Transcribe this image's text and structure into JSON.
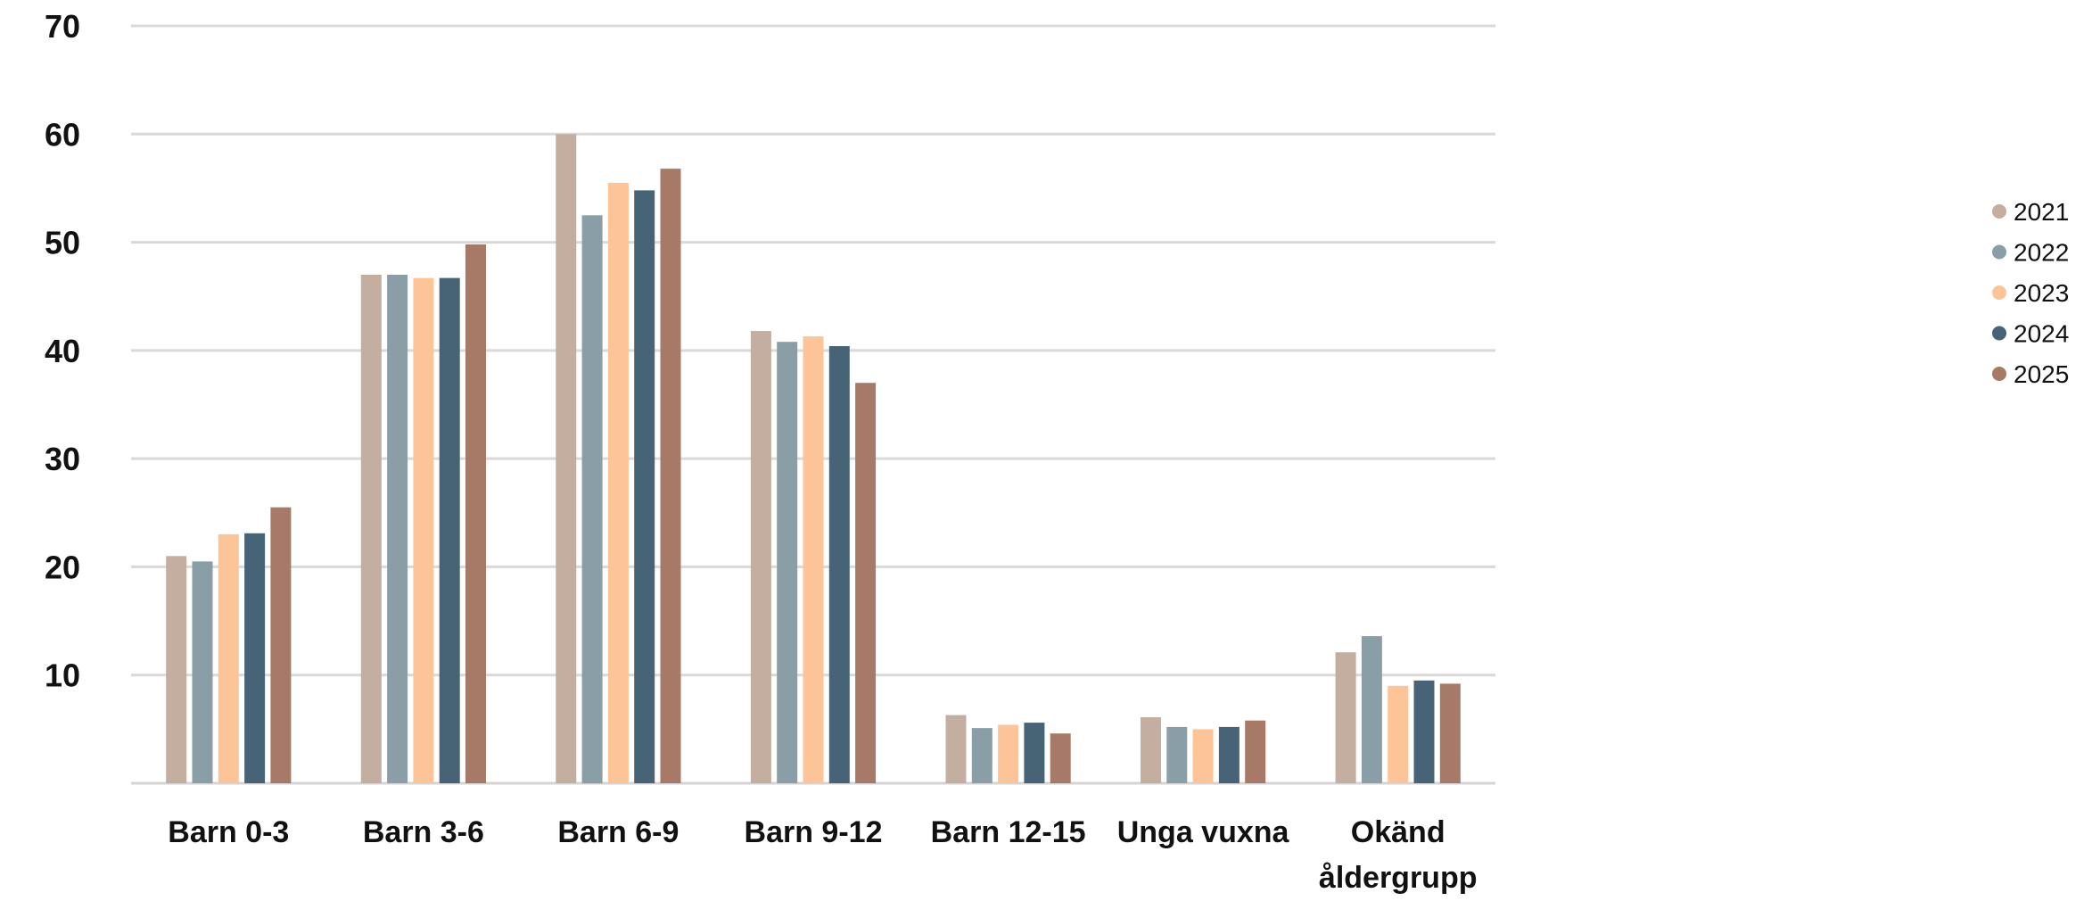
{
  "chart_data": {
    "type": "bar",
    "categories": [
      [
        "Barn 0-3"
      ],
      [
        "Barn 3-6"
      ],
      [
        "Barn 6-9"
      ],
      [
        "Barn 9-12"
      ],
      [
        "Barn 12-15"
      ],
      [
        "Unga vuxna"
      ],
      [
        "Okänd",
        "åldergrupp"
      ]
    ],
    "series": [
      {
        "name": "2021",
        "color": "#c4aea0",
        "values": [
          21.0,
          47.0,
          60.0,
          41.8,
          6.3,
          6.1,
          12.1
        ]
      },
      {
        "name": "2022",
        "color": "#8a9ea8",
        "values": [
          20.5,
          47.0,
          52.5,
          40.8,
          5.1,
          5.2,
          13.6
        ]
      },
      {
        "name": "2023",
        "color": "#fdc497",
        "values": [
          23.0,
          46.7,
          55.5,
          41.3,
          5.4,
          5.0,
          9.0
        ]
      },
      {
        "name": "2024",
        "color": "#476477",
        "values": [
          23.1,
          46.7,
          54.8,
          40.4,
          5.6,
          5.2,
          9.5
        ]
      },
      {
        "name": "2025",
        "color": "#a67a66",
        "values": [
          25.5,
          49.8,
          56.8,
          37.0,
          4.6,
          5.8,
          9.2
        ]
      }
    ],
    "yticks": [
      10,
      20,
      30,
      40,
      50,
      60,
      70
    ],
    "ylim": [
      0,
      70
    ],
    "grid": true,
    "legend": "right"
  }
}
